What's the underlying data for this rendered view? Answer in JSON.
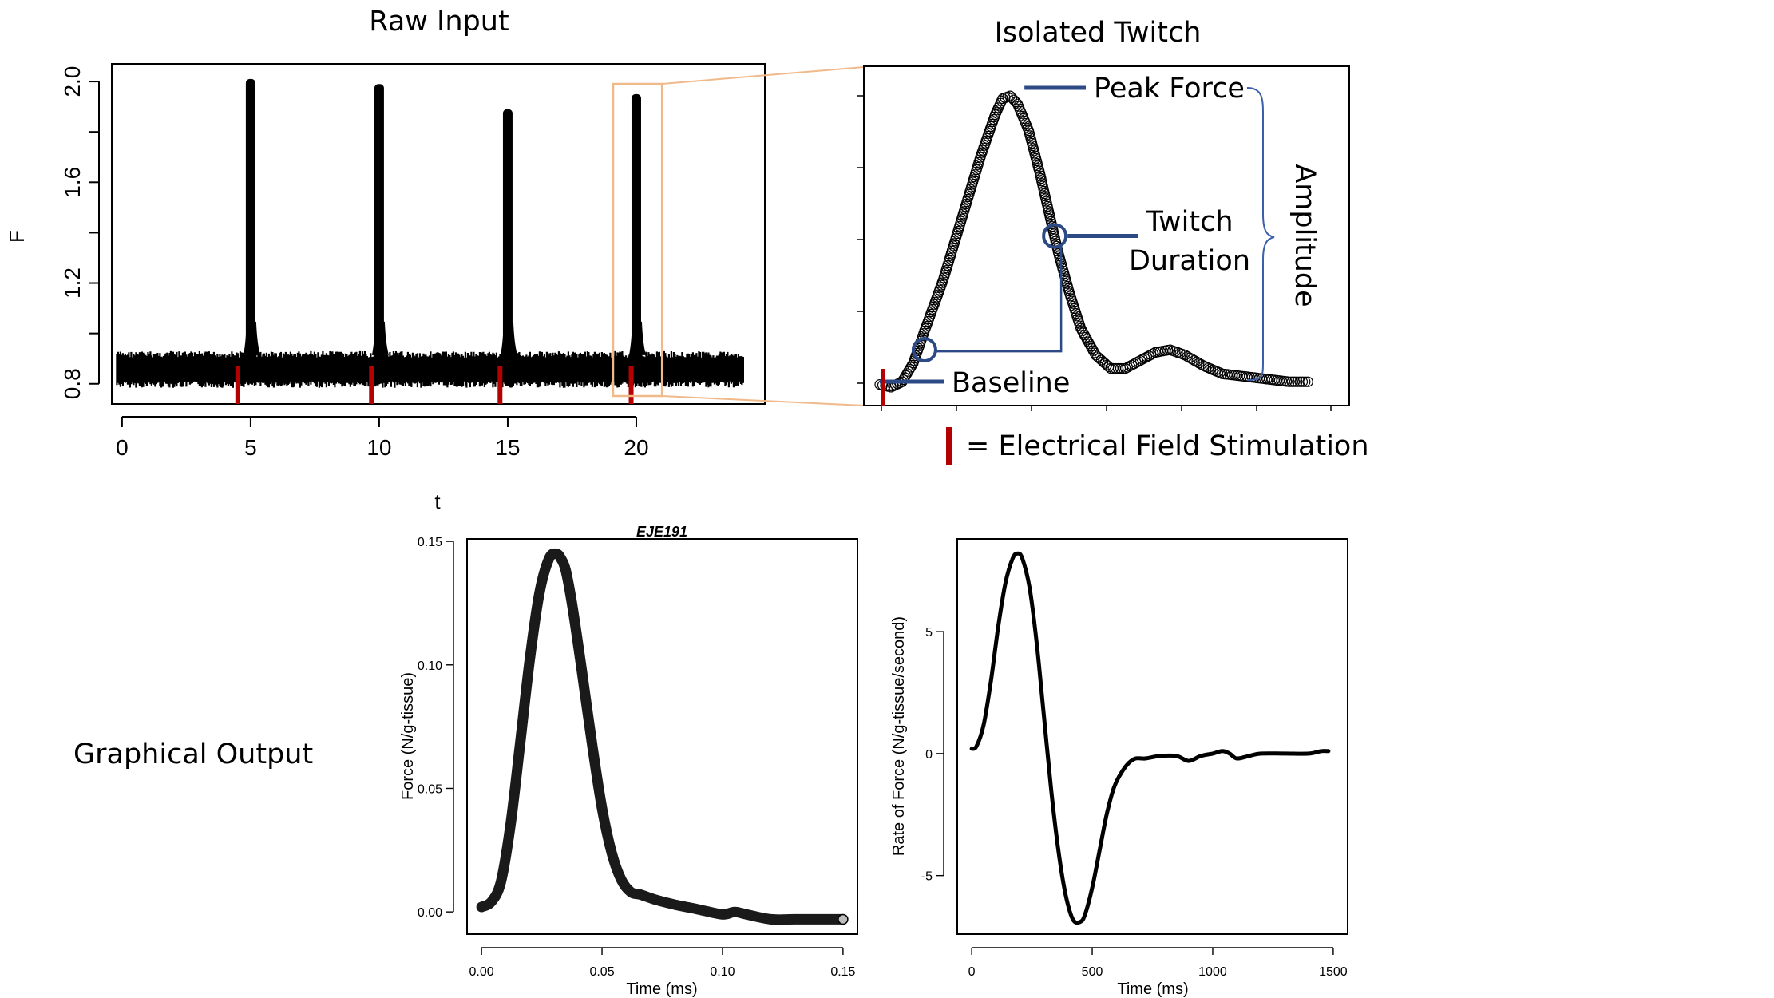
{
  "labels": {
    "raw_input": "Raw Input",
    "isolated_twitch": "Isolated Twitch",
    "peak_force": "Peak Force",
    "twitch": "Twitch",
    "duration": "Duration",
    "amplitude": "Amplitude",
    "baseline": "Baseline",
    "efs_legend": "= Electrical Field Stimulation",
    "graphical_output": "Graphical Output"
  },
  "colors": {
    "stimulation": "#b40000",
    "annotation": "#2c4a86",
    "zoom_box": "#f0b98a",
    "data": "#000000"
  },
  "chart_data": [
    {
      "id": "raw-input",
      "type": "scatter",
      "title": "",
      "xlabel": "t",
      "ylabel": "F",
      "xlim": [
        -0.4,
        25.0
      ],
      "ylim": [
        0.72,
        2.07
      ],
      "xticks": [
        "0",
        "5",
        "10",
        "15",
        "20"
      ],
      "yticks": [
        "0.8",
        "1.2",
        "1.6",
        "2.0"
      ],
      "baseline_band": [
        0.8,
        0.92
      ],
      "series": [
        {
          "values": [
            {
              "x": 5.0,
              "peak": 2.01
            },
            {
              "x": 10.0,
              "peak": 1.99
            },
            {
              "x": 15.0,
              "peak": 1.89
            },
            {
              "x": 20.0,
              "peak": 1.95
            }
          ]
        }
      ],
      "stimulation_times": [
        4.5,
        9.7,
        14.7,
        19.8
      ],
      "zoom_window": [
        19.1,
        21.0
      ]
    },
    {
      "id": "isolated-twitch",
      "type": "scatter",
      "title": "",
      "xlabel": "",
      "ylabel": "",
      "xlim": [
        0,
        1.2
      ],
      "ylim": [
        0.76,
        2.0
      ],
      "points": [
        [
          0.0,
          0.83
        ],
        [
          0.03,
          0.82
        ],
        [
          0.06,
          0.84
        ],
        [
          0.09,
          0.91
        ],
        [
          0.12,
          1.03
        ],
        [
          0.17,
          1.22
        ],
        [
          0.22,
          1.45
        ],
        [
          0.27,
          1.68
        ],
        [
          0.31,
          1.84
        ],
        [
          0.33,
          1.9
        ],
        [
          0.35,
          1.91
        ],
        [
          0.37,
          1.88
        ],
        [
          0.4,
          1.78
        ],
        [
          0.43,
          1.62
        ],
        [
          0.46,
          1.44
        ],
        [
          0.48,
          1.32
        ],
        [
          0.51,
          1.17
        ],
        [
          0.54,
          1.04
        ],
        [
          0.58,
          0.94
        ],
        [
          0.62,
          0.89
        ],
        [
          0.66,
          0.89
        ],
        [
          0.7,
          0.92
        ],
        [
          0.74,
          0.95
        ],
        [
          0.78,
          0.96
        ],
        [
          0.82,
          0.94
        ],
        [
          0.87,
          0.9
        ],
        [
          0.92,
          0.87
        ],
        [
          0.98,
          0.86
        ],
        [
          1.04,
          0.85
        ],
        [
          1.1,
          0.84
        ],
        [
          1.15,
          0.84
        ]
      ],
      "annotations": {
        "peak_force": [
          0.35,
          1.91
        ],
        "twitch_duration": [
          0.47,
          1.38
        ],
        "early_point": [
          0.12,
          0.96
        ],
        "baseline": [
          0.0,
          0.83
        ]
      }
    },
    {
      "id": "force-output",
      "type": "line",
      "title": "EJE191",
      "xlabel": "Time (ms)",
      "ylabel": "Force (N/g-tissue)",
      "xlim": [
        -0.006,
        0.156
      ],
      "ylim": [
        -0.009,
        0.151
      ],
      "xticks": [
        0.0,
        0.05,
        0.1,
        0.15
      ],
      "xtick_labels": [
        "0.00",
        "0.05",
        "0.10",
        "0.15"
      ],
      "yticks": [
        0.0,
        0.05,
        0.1,
        0.15
      ],
      "ytick_labels": [
        "0.00",
        "0.05",
        "0.10",
        "0.15"
      ],
      "x": [
        0.0,
        0.004,
        0.008,
        0.012,
        0.016,
        0.02,
        0.024,
        0.028,
        0.031,
        0.033,
        0.035,
        0.038,
        0.042,
        0.046,
        0.05,
        0.054,
        0.058,
        0.062,
        0.066,
        0.072,
        0.08,
        0.09,
        0.1,
        0.105,
        0.11,
        0.12,
        0.13,
        0.14,
        0.15
      ],
      "y": [
        0.002,
        0.004,
        0.012,
        0.035,
        0.068,
        0.102,
        0.129,
        0.143,
        0.145,
        0.143,
        0.138,
        0.122,
        0.095,
        0.067,
        0.042,
        0.024,
        0.013,
        0.008,
        0.007,
        0.005,
        0.003,
        0.001,
        -0.001,
        0.0,
        -0.001,
        -0.003,
        -0.003,
        -0.003,
        -0.003
      ]
    },
    {
      "id": "rate-output",
      "type": "line",
      "title": "",
      "xlabel": "Time (ms)",
      "ylabel": "Rate of Force (N/g-tissue/second)",
      "xlim": [
        -60,
        1560
      ],
      "ylim": [
        -7.4,
        8.8
      ],
      "xticks": [
        0,
        500,
        1000,
        1500
      ],
      "xtick_labels": [
        "0",
        "500",
        "1000",
        "1500"
      ],
      "yticks": [
        -5,
        0,
        5
      ],
      "ytick_labels": [
        "-5",
        "0",
        "5"
      ],
      "x": [
        0,
        20,
        50,
        80,
        110,
        140,
        170,
        190,
        210,
        240,
        270,
        300,
        330,
        360,
        390,
        420,
        450,
        470,
        500,
        530,
        560,
        590,
        620,
        650,
        680,
        720,
        780,
        850,
        900,
        950,
        1000,
        1040,
        1070,
        1100,
        1150,
        1200,
        1300,
        1400,
        1450,
        1480
      ],
      "y": [
        0.2,
        0.3,
        1.2,
        3.0,
        5.2,
        7.0,
        8.0,
        8.2,
        8.0,
        6.8,
        4.5,
        1.5,
        -1.5,
        -4.0,
        -5.8,
        -6.8,
        -6.9,
        -6.6,
        -5.5,
        -4.0,
        -2.5,
        -1.4,
        -0.8,
        -0.4,
        -0.2,
        -0.2,
        -0.1,
        -0.1,
        -0.3,
        -0.1,
        0.0,
        0.1,
        0.0,
        -0.2,
        -0.1,
        0.0,
        0.0,
        0.0,
        0.1,
        0.1
      ]
    }
  ]
}
